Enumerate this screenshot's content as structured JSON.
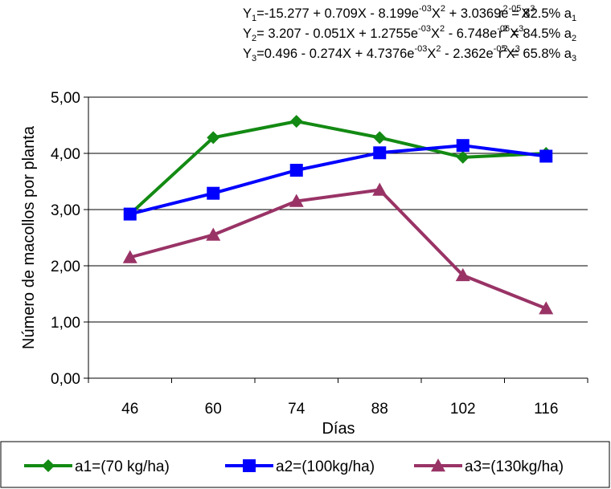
{
  "equations": [
    {
      "y": "Y",
      "y_sub": "1",
      "pre": "=-15.277 + 0.709X - 8.199e",
      "e1": "-03",
      "mid1": "X",
      "p1": "2",
      "mid2": " + 3.0369e",
      "e2": "-05",
      "mid3": "X",
      "p2": "3",
      "r": "r",
      "r_pow": "2",
      "r_val": " = 82.5% a",
      "a_sub": "1"
    },
    {
      "y": "Y",
      "y_sub": "2",
      "pre": "= 3.207 - 0.051X + 1.2755e",
      "e1": "-03",
      "mid1": "X",
      "p1": "2",
      "mid2": " - 6.748e",
      "e2": "-06",
      "mid3": "X",
      "p2": "3",
      "r": "r",
      "r_pow": "2",
      "r_val": " = 84.5% a",
      "a_sub": "2"
    },
    {
      "y": "Y",
      "y_sub": "3",
      "pre": "=0.496 - 0.274X + 4.7376e",
      "e1": "-03",
      "mid1": "X",
      "p1": "2",
      "mid2": " - 2.362e",
      "e2": "-05",
      "mid3": "X",
      "p2": "3",
      "r": "r",
      "r_pow": "2",
      "r_val": " = 65.8% a",
      "a_sub": "3"
    }
  ],
  "chart_data": {
    "type": "line",
    "title": "",
    "xlabel": "Días",
    "ylabel": "Número de macollos por planta",
    "categories": [
      "46",
      "60",
      "74",
      "88",
      "102",
      "116"
    ],
    "ylim": [
      0,
      5
    ],
    "yticks": [
      "0,00",
      "1,00",
      "2,00",
      "3,00",
      "4,00",
      "5,00"
    ],
    "grid": "horizontal",
    "legend_position": "bottom",
    "series": [
      {
        "name": "a1=(70 kg/ha)",
        "color": "#138a13",
        "marker": "diamond",
        "values": [
          2.92,
          4.28,
          4.57,
          4.28,
          3.93,
          4.0
        ]
      },
      {
        "name": "a2=(100kg/ha)",
        "color": "#0000ff",
        "marker": "square",
        "values": [
          2.92,
          3.29,
          3.7,
          4.01,
          4.14,
          3.95
        ]
      },
      {
        "name": "a3=(130kg/ha)",
        "color": "#993366",
        "marker": "triangle",
        "values": [
          2.15,
          2.55,
          3.15,
          3.35,
          1.83,
          1.24
        ]
      }
    ]
  }
}
